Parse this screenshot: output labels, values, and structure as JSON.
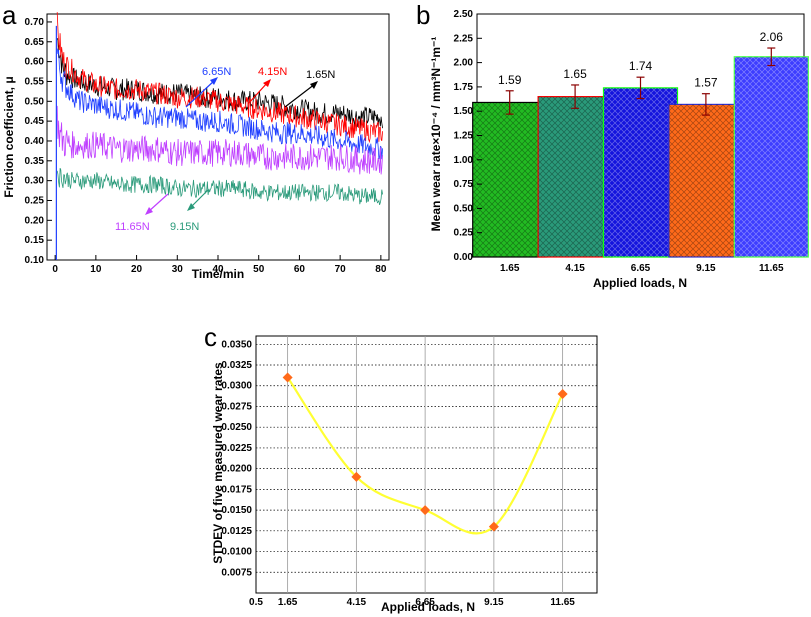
{
  "chart_data": [
    {
      "panel": "a",
      "type": "line",
      "xlabel": "Time/min",
      "ylabel": "Friction coefficient, μ",
      "xlim": [
        -2,
        82
      ],
      "ylim": [
        0.1,
        0.72
      ],
      "xticks": [
        "0",
        "10",
        "20",
        "30",
        "40",
        "50",
        "60",
        "70",
        "80"
      ],
      "yticks": [
        "0.10",
        "0.15",
        "0.20",
        "0.25",
        "0.30",
        "0.35",
        "0.40",
        "0.45",
        "0.50",
        "0.55",
        "0.60",
        "0.65",
        "0.70"
      ],
      "series": [
        {
          "name": "1.65N",
          "color": "#000000",
          "x": [
            0,
            0.5,
            1,
            2,
            4,
            6,
            10,
            15,
            20,
            25,
            30,
            35,
            40,
            45,
            50,
            55,
            60,
            65,
            70,
            75,
            80
          ],
          "y": [
            0.1,
            0.66,
            0.63,
            0.58,
            0.56,
            0.55,
            0.54,
            0.53,
            0.53,
            0.52,
            0.52,
            0.51,
            0.51,
            0.5,
            0.5,
            0.49,
            0.48,
            0.47,
            0.47,
            0.46,
            0.46
          ]
        },
        {
          "name": "4.15N",
          "color": "#ff0000",
          "x": [
            0,
            0.5,
            1,
            2,
            4,
            6,
            10,
            15,
            20,
            25,
            30,
            35,
            40,
            45,
            50,
            55,
            60,
            65,
            70,
            75,
            80
          ],
          "y": [
            0.1,
            0.69,
            0.65,
            0.6,
            0.58,
            0.56,
            0.54,
            0.53,
            0.53,
            0.52,
            0.51,
            0.51,
            0.5,
            0.49,
            0.48,
            0.47,
            0.46,
            0.45,
            0.44,
            0.43,
            0.42
          ]
        },
        {
          "name": "6.65N",
          "color": "#1f3fff",
          "x": [
            0,
            0.5,
            1,
            2,
            4,
            6,
            10,
            15,
            20,
            25,
            30,
            35,
            40,
            45,
            50,
            55,
            60,
            65,
            70,
            75,
            80
          ],
          "y": [
            0.1,
            0.63,
            0.59,
            0.55,
            0.52,
            0.5,
            0.49,
            0.48,
            0.47,
            0.46,
            0.46,
            0.45,
            0.45,
            0.44,
            0.43,
            0.42,
            0.42,
            0.41,
            0.4,
            0.39,
            0.38
          ]
        },
        {
          "name": "11.65N",
          "color": "#bf3fff",
          "x": [
            0,
            0.5,
            1,
            2,
            4,
            6,
            10,
            15,
            20,
            25,
            30,
            35,
            40,
            45,
            50,
            55,
            60,
            65,
            70,
            75,
            80
          ],
          "y": [
            0.1,
            0.46,
            0.42,
            0.4,
            0.39,
            0.39,
            0.39,
            0.38,
            0.38,
            0.38,
            0.37,
            0.37,
            0.37,
            0.37,
            0.36,
            0.36,
            0.36,
            0.36,
            0.36,
            0.35,
            0.35
          ]
        },
        {
          "name": "9.15N",
          "color": "#2a9a7a",
          "x": [
            0,
            0.5,
            1,
            2,
            4,
            6,
            10,
            15,
            20,
            25,
            30,
            35,
            40,
            45,
            50,
            55,
            60,
            65,
            70,
            75,
            80
          ],
          "y": [
            0.1,
            0.33,
            0.31,
            0.31,
            0.3,
            0.3,
            0.3,
            0.29,
            0.29,
            0.29,
            0.28,
            0.28,
            0.28,
            0.28,
            0.27,
            0.27,
            0.27,
            0.27,
            0.27,
            0.26,
            0.26
          ]
        }
      ]
    },
    {
      "panel": "b",
      "type": "bar",
      "xlabel": "Applied loads, N",
      "ylabel": "Mean wear rate×10⁻⁴ / mm³N⁻¹m⁻¹",
      "ylim": [
        0.0,
        2.5
      ],
      "yticks": [
        "0.00",
        "0.25",
        "0.50",
        "0.75",
        "1.00",
        "1.25",
        "1.50",
        "1.75",
        "2.00",
        "2.25",
        "2.50"
      ],
      "categories": [
        "1.65",
        "4.15",
        "6.65",
        "9.15",
        "11.65"
      ],
      "values": [
        1.59,
        1.65,
        1.74,
        1.57,
        2.06
      ],
      "labels": [
        "1.59",
        "1.65",
        "1.74",
        "1.57",
        "2.06"
      ],
      "errors": [
        0.12,
        0.12,
        0.11,
        0.11,
        0.09
      ],
      "colors": [
        "#22bb22",
        "#2a9a7a",
        "#1414dd",
        "#ff6a1a",
        "#3d3dff"
      ],
      "edges": [
        "#000000",
        "#ff0000",
        "#00ff00",
        "#3333cc",
        "#3fff3f"
      ]
    },
    {
      "panel": "c",
      "type": "line",
      "xlabel": "Applied loads, N",
      "ylabel": "STDEV of five measured wear rates",
      "xlim": [
        0.5,
        12.9
      ],
      "ylim": [
        0.005,
        0.036
      ],
      "xticks": [
        "0.5",
        "1.65",
        "4.15",
        "6.65",
        "9.15",
        "11.65"
      ],
      "yticks": [
        "0.0075",
        "0.0100",
        "0.0125",
        "0.0150",
        "0.0175",
        "0.0200",
        "0.0225",
        "0.0250",
        "0.0275",
        "0.0300",
        "0.0325",
        "0.0350"
      ],
      "x": [
        1.65,
        4.15,
        6.65,
        9.15,
        11.65
      ],
      "y": [
        0.031,
        0.019,
        0.015,
        0.013,
        0.029
      ],
      "line_color": "#ffff33",
      "marker_color": "#ff6a1a"
    }
  ],
  "panel_labels": {
    "a": "a",
    "b": "b",
    "c": "c"
  }
}
